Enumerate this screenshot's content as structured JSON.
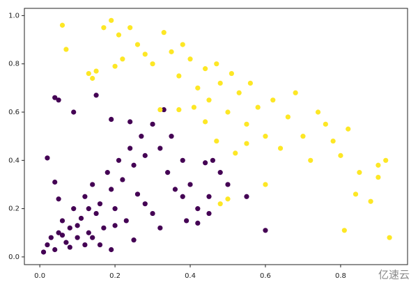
{
  "chart_data": {
    "type": "scatter",
    "xlim": [
      -0.041,
      0.978
    ],
    "ylim": [
      -0.032,
      1.03
    ],
    "xticks": [
      {
        "value": 0,
        "label": "0.0"
      },
      0.2,
      0.4,
      0.6,
      0.8
    ],
    "yticks": [
      {
        "value": 0,
        "label": "0.0"
      },
      0.2,
      0.4,
      0.6,
      0.8,
      {
        "value": 1,
        "label": "1.0"
      }
    ],
    "grid": false,
    "watermark": "亿速云",
    "series": [
      {
        "color": "#440154",
        "x": [
          0.01,
          0.02,
          0.03,
          0.04,
          0.05,
          0.06,
          0.07,
          0.08,
          0.09,
          0.1,
          0.11,
          0.12,
          0.13,
          0.14,
          0.15,
          0.16,
          0.17,
          0.18,
          0.19,
          0.2,
          0.21,
          0.22,
          0.23,
          0.24,
          0.25,
          0.26,
          0.27,
          0.28,
          0.3,
          0.32,
          0.34,
          0.36,
          0.38,
          0.4,
          0.42,
          0.45,
          0.48,
          0.5,
          0.55,
          0.6,
          0.04,
          0.05,
          0.09,
          0.15,
          0.19,
          0.24,
          0.33,
          0.02,
          0.04,
          0.05,
          0.19,
          0.25,
          0.32,
          0.39,
          0.42,
          0.45,
          0.38,
          0.46,
          0.44,
          0.1,
          0.12,
          0.08,
          0.06,
          0.14,
          0.16,
          0.13,
          0.2,
          0.28,
          0.3,
          0.35
        ],
        "values": [
          0.02,
          0.05,
          0.08,
          0.03,
          0.1,
          0.15,
          0.06,
          0.12,
          0.2,
          0.08,
          0.16,
          0.25,
          0.1,
          0.3,
          0.18,
          0.22,
          0.12,
          0.35,
          0.28,
          0.2,
          0.4,
          0.32,
          0.15,
          0.45,
          0.38,
          0.26,
          0.5,
          0.42,
          0.55,
          0.45,
          0.35,
          0.28,
          0.4,
          0.3,
          0.2,
          0.25,
          0.35,
          0.3,
          0.25,
          0.11,
          0.66,
          0.65,
          0.6,
          0.67,
          0.57,
          0.56,
          0.61,
          0.41,
          0.31,
          0.24,
          0.03,
          0.07,
          0.12,
          0.15,
          0.14,
          0.18,
          0.25,
          0.4,
          0.39,
          0.13,
          0.05,
          0.04,
          0.09,
          0.08,
          0.05,
          0.2,
          0.13,
          0.22,
          0.18,
          0.5
        ]
      },
      {
        "color": "#fde725",
        "x": [
          0.06,
          0.07,
          0.15,
          0.17,
          0.19,
          0.2,
          0.21,
          0.22,
          0.24,
          0.26,
          0.28,
          0.3,
          0.33,
          0.35,
          0.37,
          0.38,
          0.4,
          0.42,
          0.44,
          0.45,
          0.47,
          0.48,
          0.5,
          0.51,
          0.53,
          0.55,
          0.56,
          0.58,
          0.6,
          0.62,
          0.64,
          0.66,
          0.68,
          0.7,
          0.72,
          0.74,
          0.76,
          0.78,
          0.8,
          0.82,
          0.84,
          0.85,
          0.88,
          0.9,
          0.92,
          0.93,
          0.81,
          0.6,
          0.52,
          0.55,
          0.5,
          0.48,
          0.37,
          0.41,
          0.44,
          0.47,
          0.14,
          0.13,
          0.32,
          0.9
        ],
        "values": [
          0.96,
          0.86,
          0.77,
          0.95,
          0.98,
          0.79,
          0.92,
          0.82,
          0.95,
          0.88,
          0.84,
          0.8,
          0.93,
          0.85,
          0.75,
          0.88,
          0.82,
          0.7,
          0.78,
          0.65,
          0.8,
          0.72,
          0.6,
          0.76,
          0.68,
          0.55,
          0.72,
          0.62,
          0.5,
          0.65,
          0.45,
          0.58,
          0.68,
          0.5,
          0.4,
          0.6,
          0.55,
          0.48,
          0.42,
          0.53,
          0.26,
          0.35,
          0.23,
          0.38,
          0.4,
          0.08,
          0.11,
          0.3,
          0.43,
          0.47,
          0.24,
          0.22,
          0.61,
          0.62,
          0.56,
          0.48,
          0.74,
          0.76,
          0.61,
          0.33
        ]
      }
    ]
  }
}
